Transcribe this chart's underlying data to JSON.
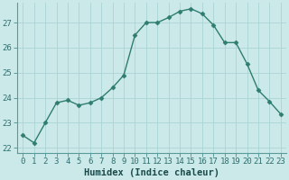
{
  "x": [
    0,
    1,
    2,
    3,
    4,
    5,
    6,
    7,
    8,
    9,
    10,
    11,
    12,
    13,
    14,
    15,
    16,
    17,
    18,
    19,
    20,
    21,
    22,
    23
  ],
  "y": [
    22.5,
    22.2,
    23.0,
    23.8,
    23.9,
    23.7,
    23.8,
    24.0,
    24.4,
    24.9,
    26.5,
    27.0,
    27.0,
    27.2,
    27.45,
    27.55,
    27.35,
    26.9,
    26.2,
    26.2,
    25.35,
    24.3,
    23.85,
    23.35
  ],
  "line_color": "#2e7d6e",
  "marker": "D",
  "markersize": 2.5,
  "bg_color": "#cce9e9",
  "grid_color": "#aad4d4",
  "xlabel": "Humidex (Indice chaleur)",
  "ylim": [
    21.8,
    27.8
  ],
  "xlim": [
    -0.5,
    23.5
  ],
  "yticks": [
    22,
    23,
    24,
    25,
    26,
    27
  ],
  "xticks": [
    0,
    1,
    2,
    3,
    4,
    5,
    6,
    7,
    8,
    9,
    10,
    11,
    12,
    13,
    14,
    15,
    16,
    17,
    18,
    19,
    20,
    21,
    22,
    23
  ],
  "xlabel_fontsize": 7.5,
  "tick_fontsize": 6.5,
  "linewidth": 1.0
}
